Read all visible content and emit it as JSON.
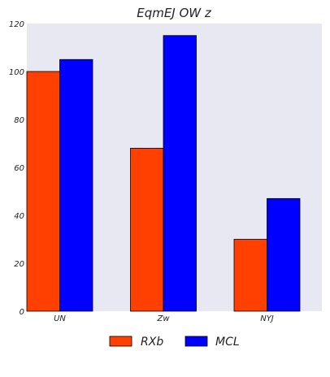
{
  "chart_data": {
    "type": "bar",
    "title": "EqmEJ OW z",
    "xlabel": "",
    "ylabel": "",
    "categories": [
      "UN",
      "Zw",
      "NYJ"
    ],
    "series": [
      {
        "name": "RXb",
        "color": "#ff4000",
        "values": [
          100,
          68,
          30
        ]
      },
      {
        "name": "MCL",
        "color": "#0000ff",
        "values": [
          105,
          115,
          47
        ]
      }
    ],
    "ylim": [
      0,
      120
    ],
    "yticks": [
      0,
      20,
      40,
      60,
      80,
      100,
      120
    ],
    "grid": false,
    "plot_background": "#e8e8f2",
    "legend_position": "bottom-center"
  }
}
